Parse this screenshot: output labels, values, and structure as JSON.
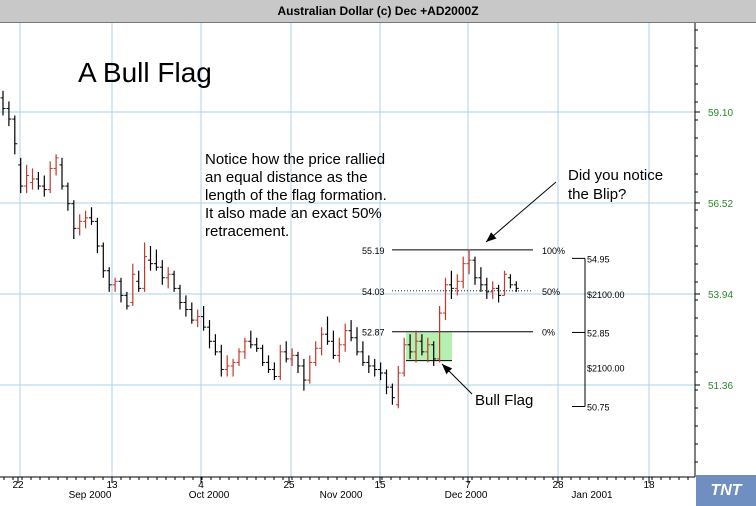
{
  "header": {
    "title": "Australian Dollar (c) Dec +AD2000Z"
  },
  "logo": {
    "text": "TNT"
  },
  "chart_data": {
    "type": "ohlc",
    "title": "A Bull Flag",
    "y_axis": {
      "ticks": [
        "59.10",
        "56.52",
        "53.94",
        "51.36"
      ],
      "tick_values": [
        59.1,
        56.52,
        53.94,
        51.36
      ],
      "color": "#2a8a2a"
    },
    "x_axis": {
      "day_ticks": [
        "22",
        "13",
        "4",
        "25",
        "15",
        "7",
        "28",
        "18"
      ],
      "month_labels": [
        "Sep 2000",
        "Oct 2000",
        "Nov 2000",
        "Dec 2000",
        "Jan 2001"
      ]
    },
    "grid": true,
    "annotations": {
      "note_lines": [
        "Notice how the price rallied",
        "an equal distance as the",
        "length of the flag formation.",
        "It also made an exact 50%",
        "retracement."
      ],
      "blip_lines": [
        "Did you notice",
        "the Blip?"
      ],
      "bull_flag_label": "Bull Flag"
    },
    "fib_levels": [
      {
        "value_label": "55.19",
        "pct_label": "100%",
        "value": 55.19
      },
      {
        "value_label": "54.03",
        "pct_label": "50%",
        "value": 54.03
      },
      {
        "value_label": "52.87",
        "pct_label": "0%",
        "value": 52.87
      }
    ],
    "measure": {
      "top": "54.95",
      "middle": "52.85",
      "bottom": "50.75",
      "amounts": [
        "$2100.00",
        "$2100.00"
      ]
    },
    "bars": [
      {
        "o": 59.5,
        "h": 59.7,
        "l": 59.0,
        "c": 59.2
      },
      {
        "o": 59.2,
        "h": 59.4,
        "l": 58.7,
        "c": 58.9
      },
      {
        "o": 58.9,
        "h": 59.0,
        "l": 57.9,
        "c": 58.2
      },
      {
        "o": 57.6,
        "h": 57.8,
        "l": 56.8,
        "c": 57.0
      },
      {
        "o": 57.0,
        "h": 57.6,
        "l": 56.8,
        "c": 57.3
      },
      {
        "o": 57.1,
        "h": 57.5,
        "l": 56.9,
        "c": 57.2
      },
      {
        "o": 57.2,
        "h": 57.4,
        "l": 56.9,
        "c": 57.0
      },
      {
        "o": 57.0,
        "h": 57.3,
        "l": 56.7,
        "c": 56.9
      },
      {
        "o": 56.9,
        "h": 57.7,
        "l": 56.8,
        "c": 57.5
      },
      {
        "o": 57.5,
        "h": 57.9,
        "l": 57.3,
        "c": 57.8
      },
      {
        "o": 57.6,
        "h": 57.8,
        "l": 56.9,
        "c": 57.0
      },
      {
        "o": 57.0,
        "h": 57.1,
        "l": 56.3,
        "c": 56.5
      },
      {
        "o": 56.5,
        "h": 56.6,
        "l": 55.5,
        "c": 55.8
      },
      {
        "o": 55.8,
        "h": 56.2,
        "l": 55.6,
        "c": 56.0
      },
      {
        "o": 56.0,
        "h": 56.3,
        "l": 55.8,
        "c": 56.1
      },
      {
        "o": 56.1,
        "h": 56.4,
        "l": 55.9,
        "c": 56.0
      },
      {
        "o": 56.0,
        "h": 56.1,
        "l": 55.1,
        "c": 55.3
      },
      {
        "o": 55.3,
        "h": 55.4,
        "l": 54.4,
        "c": 54.6
      },
      {
        "o": 54.6,
        "h": 54.7,
        "l": 54.0,
        "c": 54.2
      },
      {
        "o": 54.2,
        "h": 54.4,
        "l": 54.0,
        "c": 54.3
      },
      {
        "o": 54.3,
        "h": 54.4,
        "l": 53.7,
        "c": 53.9
      },
      {
        "o": 53.9,
        "h": 54.0,
        "l": 53.5,
        "c": 53.6
      },
      {
        "o": 53.7,
        "h": 54.8,
        "l": 53.6,
        "c": 54.5
      },
      {
        "o": 54.3,
        "h": 54.6,
        "l": 54.0,
        "c": 54.1
      },
      {
        "o": 54.1,
        "h": 55.4,
        "l": 54.0,
        "c": 55.0
      },
      {
        "o": 54.9,
        "h": 55.3,
        "l": 54.6,
        "c": 54.8
      },
      {
        "o": 54.8,
        "h": 55.2,
        "l": 54.6,
        "c": 54.7
      },
      {
        "o": 54.7,
        "h": 54.9,
        "l": 54.2,
        "c": 54.4
      },
      {
        "o": 54.4,
        "h": 54.7,
        "l": 54.1,
        "c": 54.5
      },
      {
        "o": 54.5,
        "h": 54.6,
        "l": 54.0,
        "c": 54.1
      },
      {
        "o": 54.1,
        "h": 54.2,
        "l": 53.5,
        "c": 53.7
      },
      {
        "o": 53.7,
        "h": 53.9,
        "l": 53.3,
        "c": 53.5
      },
      {
        "o": 53.5,
        "h": 53.7,
        "l": 53.1,
        "c": 53.2
      },
      {
        "o": 53.2,
        "h": 53.5,
        "l": 53.0,
        "c": 53.3
      },
      {
        "o": 53.3,
        "h": 53.6,
        "l": 52.9,
        "c": 53.0
      },
      {
        "o": 53.0,
        "h": 53.2,
        "l": 52.4,
        "c": 52.6
      },
      {
        "o": 52.6,
        "h": 52.8,
        "l": 52.2,
        "c": 52.3
      },
      {
        "o": 52.3,
        "h": 52.5,
        "l": 51.6,
        "c": 51.8
      },
      {
        "o": 51.8,
        "h": 52.2,
        "l": 51.6,
        "c": 51.9
      },
      {
        "o": 51.9,
        "h": 52.1,
        "l": 51.6,
        "c": 52.0
      },
      {
        "o": 52.0,
        "h": 52.4,
        "l": 51.9,
        "c": 52.3
      },
      {
        "o": 52.3,
        "h": 52.7,
        "l": 52.1,
        "c": 52.6
      },
      {
        "o": 52.6,
        "h": 52.9,
        "l": 52.4,
        "c": 52.5
      },
      {
        "o": 52.5,
        "h": 52.7,
        "l": 52.3,
        "c": 52.4
      },
      {
        "o": 52.4,
        "h": 52.5,
        "l": 51.9,
        "c": 52.0
      },
      {
        "o": 52.0,
        "h": 52.2,
        "l": 51.7,
        "c": 51.8
      },
      {
        "o": 51.8,
        "h": 52.0,
        "l": 51.5,
        "c": 51.6
      },
      {
        "o": 51.6,
        "h": 52.5,
        "l": 51.5,
        "c": 52.3
      },
      {
        "o": 52.3,
        "h": 52.6,
        "l": 52.0,
        "c": 52.1
      },
      {
        "o": 52.1,
        "h": 52.4,
        "l": 51.9,
        "c": 52.2
      },
      {
        "o": 52.2,
        "h": 52.3,
        "l": 51.7,
        "c": 51.9
      },
      {
        "o": 51.9,
        "h": 52.1,
        "l": 51.2,
        "c": 51.5
      },
      {
        "o": 51.5,
        "h": 52.2,
        "l": 51.4,
        "c": 52.0
      },
      {
        "o": 52.0,
        "h": 52.6,
        "l": 51.9,
        "c": 52.4
      },
      {
        "o": 52.4,
        "h": 53.0,
        "l": 52.2,
        "c": 52.8
      },
      {
        "o": 52.8,
        "h": 53.3,
        "l": 52.5,
        "c": 52.6
      },
      {
        "o": 52.6,
        "h": 52.9,
        "l": 52.1,
        "c": 52.2
      },
      {
        "o": 52.2,
        "h": 52.7,
        "l": 52.0,
        "c": 52.5
      },
      {
        "o": 52.5,
        "h": 53.1,
        "l": 52.3,
        "c": 52.9
      },
      {
        "o": 52.9,
        "h": 53.2,
        "l": 52.6,
        "c": 52.7
      },
      {
        "o": 52.7,
        "h": 53.0,
        "l": 52.2,
        "c": 52.3
      },
      {
        "o": 52.3,
        "h": 52.6,
        "l": 51.9,
        "c": 52.0
      },
      {
        "o": 52.0,
        "h": 52.2,
        "l": 51.7,
        "c": 51.9
      },
      {
        "o": 51.9,
        "h": 52.1,
        "l": 51.6,
        "c": 51.8
      },
      {
        "o": 51.8,
        "h": 52.0,
        "l": 51.5,
        "c": 51.7
      },
      {
        "o": 51.7,
        "h": 51.8,
        "l": 51.1,
        "c": 51.3
      },
      {
        "o": 51.3,
        "h": 51.4,
        "l": 50.8,
        "c": 51.0
      },
      {
        "o": 50.8,
        "h": 51.9,
        "l": 50.7,
        "c": 51.7
      },
      {
        "o": 51.7,
        "h": 52.7,
        "l": 51.6,
        "c": 52.5
      },
      {
        "o": 52.5,
        "h": 52.8,
        "l": 52.1,
        "c": 52.3
      },
      {
        "o": 52.3,
        "h": 52.9,
        "l": 52.0,
        "c": 52.6
      },
      {
        "o": 52.6,
        "h": 52.8,
        "l": 52.2,
        "c": 52.3
      },
      {
        "o": 52.3,
        "h": 52.7,
        "l": 52.0,
        "c": 52.5
      },
      {
        "o": 52.5,
        "h": 52.6,
        "l": 51.9,
        "c": 52.1
      },
      {
        "o": 52.1,
        "h": 53.6,
        "l": 52.0,
        "c": 53.4
      },
      {
        "o": 53.4,
        "h": 54.4,
        "l": 53.2,
        "c": 54.2
      },
      {
        "o": 54.2,
        "h": 54.6,
        "l": 53.8,
        "c": 54.1
      },
      {
        "o": 54.1,
        "h": 54.5,
        "l": 53.9,
        "c": 54.3
      },
      {
        "o": 54.3,
        "h": 55.0,
        "l": 54.1,
        "c": 54.8
      },
      {
        "o": 54.8,
        "h": 55.2,
        "l": 54.5,
        "c": 54.9
      },
      {
        "o": 54.9,
        "h": 55.0,
        "l": 54.2,
        "c": 54.4
      },
      {
        "o": 54.4,
        "h": 54.7,
        "l": 54.0,
        "c": 54.2
      },
      {
        "o": 54.2,
        "h": 54.4,
        "l": 53.8,
        "c": 54.0
      },
      {
        "o": 54.0,
        "h": 54.3,
        "l": 53.8,
        "c": 54.1
      },
      {
        "o": 54.1,
        "h": 54.2,
        "l": 53.7,
        "c": 53.9
      },
      {
        "o": 53.9,
        "h": 54.6,
        "l": 53.9,
        "c": 54.5
      },
      {
        "o": 54.4,
        "h": 54.5,
        "l": 54.1,
        "c": 54.2
      },
      {
        "o": 54.2,
        "h": 54.3,
        "l": 54.0,
        "c": 54.1
      }
    ]
  }
}
